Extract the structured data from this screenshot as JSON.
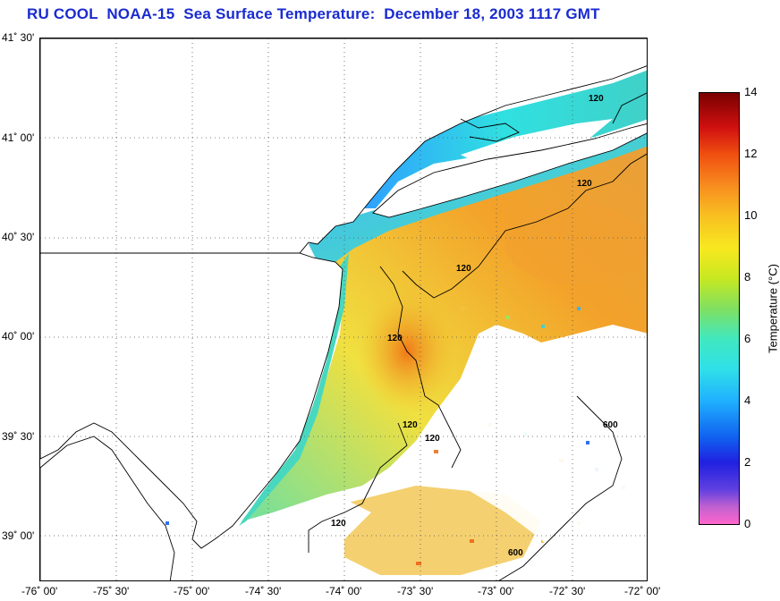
{
  "title": "RU COOL  NOAA-15  Sea Surface Temperature:  December 18, 2003 1117 GMT",
  "lat_ticks": [
    "41˚ 30'",
    "41˚ 00'",
    "40˚ 30'",
    "40˚ 00'",
    "39˚ 30'",
    "39˚ 00'"
  ],
  "lon_ticks": [
    "-76˚ 00'",
    "-75˚ 30'",
    "-75˚ 00'",
    "-74˚ 30'",
    "-74˚ 00'",
    "-73˚ 30'",
    "-73˚ 00'",
    "-72˚ 30'",
    "-72˚ 00'"
  ],
  "contour_labels": [
    "120",
    "120",
    "120",
    "120",
    "120",
    "120",
    "120",
    "600",
    "600"
  ],
  "colorbar": {
    "title": "Temperature (°C)",
    "ticks": [
      "14",
      "12",
      "10",
      "8",
      "6",
      "4",
      "2",
      "0"
    ],
    "min": 0,
    "max": 14
  },
  "colors": {
    "title": "#1a2bd0",
    "land": "#ffffff",
    "coast": "#000000"
  }
}
